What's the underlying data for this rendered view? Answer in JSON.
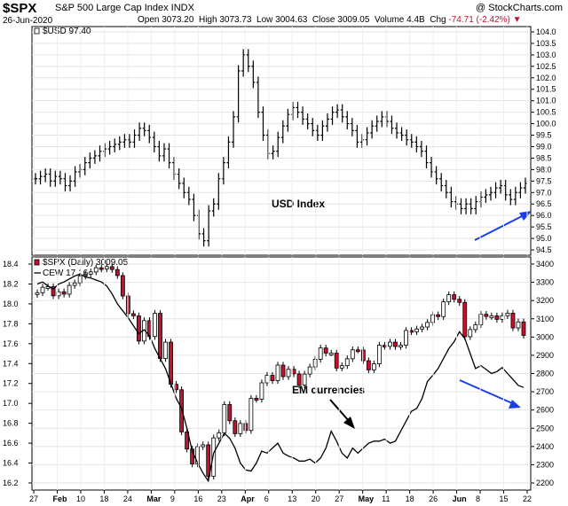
{
  "header": {
    "symbol": "$SPX",
    "description": "S&P 500 Large Cap Index INDX",
    "brand": "@ StockCharts.com",
    "date": "26-Jun-2020",
    "ohlc": {
      "open_label": "Open",
      "open": "3073.20",
      "high_label": "High",
      "high": "3073.73",
      "low_label": "Low",
      "low": "3004.63",
      "close_label": "Close",
      "close": "3009.05",
      "volume_label": "Volume",
      "volume": "4.4B",
      "chg_label": "Chg",
      "chg": "-74.71 (-2.42%)"
    },
    "down_color": "#c8102e"
  },
  "chart_data": [
    {
      "type": "ohlc",
      "panel": "top",
      "legend": "$USD 97.40",
      "annotation": "USD Index",
      "arrow_color": "#1a3ee8",
      "ylim": [
        94.5,
        104.0
      ],
      "y_ticks": [
        "94.5",
        "95.0",
        "95.5",
        "96.0",
        "96.5",
        "97.0",
        "97.5",
        "98.0",
        "98.5",
        "99.0",
        "99.5",
        "100.0",
        "100.5",
        "101.0",
        "101.5",
        "102.0",
        "102.5",
        "103.0",
        "103.5",
        "104.0"
      ],
      "grid": true,
      "series": [
        {
          "values": [
            97.6,
            97.7,
            97.8,
            97.5,
            97.7,
            97.6,
            97.3,
            97.5,
            97.9,
            98.0,
            98.3,
            98.5,
            98.6,
            98.8,
            98.9,
            99.0,
            99.1,
            99.2,
            99.3,
            99.2,
            99.5,
            99.8,
            99.7,
            99.4,
            99.0,
            98.6,
            98.9,
            98.3,
            97.8,
            97.4,
            97.0,
            96.7,
            96.0,
            95.2,
            94.9,
            96.2,
            96.5,
            97.6,
            98.3,
            99.2,
            100.3,
            102.3,
            103.0,
            102.5,
            101.8,
            100.5,
            99.5,
            98.7,
            98.8,
            99.4,
            99.9,
            100.4,
            100.7,
            100.5,
            100.2,
            100.0,
            99.7,
            99.5,
            99.9,
            100.2,
            100.5,
            100.6,
            100.3,
            100.0,
            99.7,
            99.2,
            99.3,
            99.6,
            99.9,
            100.1,
            100.3,
            100.1,
            99.8,
            99.6,
            99.5,
            99.3,
            99.2,
            99.0,
            98.8,
            98.3,
            97.9,
            97.6,
            97.3,
            97.0,
            96.6,
            96.5,
            96.3,
            96.5,
            96.3,
            96.6,
            96.8,
            96.9,
            97.0,
            97.2,
            97.3,
            96.9,
            96.7,
            97.0,
            97.2,
            97.4
          ]
        }
      ]
    },
    {
      "type": "candlestick",
      "panel": "bottom",
      "legend": [
        "$SPX (Daily) 3009.05",
        "CEW 17.16"
      ],
      "annotation": "EM currencies",
      "arrow_color": "#1a3ee8",
      "ylim_left": [
        16.2,
        18.4
      ],
      "left_ticks": [
        "16.2",
        "16.4",
        "16.6",
        "16.8",
        "17.0",
        "17.2",
        "17.4",
        "17.6",
        "17.8",
        "18.0",
        "18.2",
        "18.4"
      ],
      "ylim_right": [
        2200,
        3400
      ],
      "right_ticks": [
        "2200",
        "2300",
        "2400",
        "2500",
        "2600",
        "2700",
        "2800",
        "2900",
        "3000",
        "3100",
        "3200",
        "3300",
        "3400"
      ],
      "x_ticks": [
        "27",
        "Feb",
        "10",
        "18",
        "24",
        "Mar",
        "9",
        "16",
        "23",
        "Apr",
        "6",
        "13",
        "20",
        "27",
        "May",
        "11",
        "18",
        "26",
        "Jun",
        "8",
        "15",
        "22"
      ],
      "grid": true,
      "series": [
        {
          "name": "$SPX (Daily)",
          "values": [
            3243,
            3273,
            3276,
            3226,
            3248,
            3235,
            3283,
            3297,
            3334,
            3345,
            3357,
            3380,
            3373,
            3386,
            3370,
            3337,
            3225,
            3128,
            3116,
            2978,
            3090,
            3003,
            3130,
            2882,
            2972,
            2741,
            2711,
            2480,
            2386,
            2304,
            2399,
            2409,
            2237,
            2447,
            2475,
            2630,
            2541,
            2470,
            2526,
            2488,
            2664,
            2659,
            2749,
            2790,
            2761,
            2846,
            2783,
            2823,
            2798,
            2737,
            2797,
            2836,
            2878,
            2940,
            2912,
            2912,
            2830,
            2843,
            2881,
            2930,
            2929,
            2870,
            2820,
            2853,
            2955,
            2949,
            2972,
            2948,
            2955,
            3036,
            3029,
            3044,
            3055,
            3080,
            3122,
            3112,
            3193,
            3232,
            3207,
            3190,
            3002,
            3041,
            3067,
            3125,
            3113,
            3116,
            3097,
            3117,
            3131,
            3050,
            3083,
            3009
          ]
        },
        {
          "name": "CEW",
          "values": [
            18.2,
            18.22,
            18.18,
            18.15,
            18.2,
            18.22,
            18.25,
            18.28,
            18.3,
            18.27,
            18.26,
            18.24,
            18.22,
            18.18,
            18.1,
            18.0,
            17.93,
            17.86,
            17.78,
            17.7,
            17.74,
            17.68,
            17.55,
            17.45,
            17.35,
            17.2,
            17.05,
            16.95,
            16.75,
            16.52,
            16.4,
            16.3,
            16.22,
            16.5,
            16.6,
            16.7,
            16.65,
            16.55,
            16.4,
            16.33,
            16.32,
            16.4,
            16.52,
            16.5,
            16.55,
            16.6,
            16.5,
            16.47,
            16.45,
            16.42,
            16.42,
            16.44,
            16.4,
            16.45,
            16.55,
            16.72,
            16.62,
            16.5,
            16.45,
            16.55,
            16.5,
            16.55,
            16.6,
            16.62,
            16.62,
            16.64,
            16.6,
            16.62,
            16.72,
            16.82,
            16.92,
            16.95,
            17.05,
            17.22,
            17.28,
            17.35,
            17.45,
            17.55,
            17.62,
            17.72,
            17.65,
            17.5,
            17.35,
            17.38,
            17.34,
            17.3,
            17.32,
            17.36,
            17.3,
            17.24,
            17.18,
            17.16
          ]
        }
      ]
    }
  ]
}
